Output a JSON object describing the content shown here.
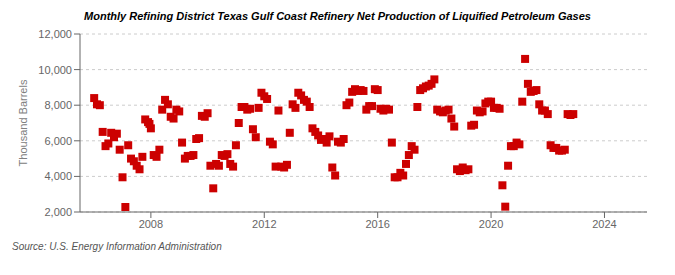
{
  "chart_data": {
    "type": "scatter",
    "title": "Monthly Refining District Texas Gulf Coast Refinery Net Production of Liquified Petroleum Gases",
    "ylabel": "Thousand Barrels",
    "annotation": "Source: U.S. Energy Information Administration",
    "color": "#cc0000",
    "marker": "square",
    "grid": true,
    "xlim": [
      2005.5,
      2025.5
    ],
    "xticks": [
      2008,
      2012,
      2016,
      2020,
      2024
    ],
    "ylim": [
      2000,
      12000
    ],
    "yticks": [
      {
        "value": 2000,
        "label": "2,000"
      },
      {
        "value": 4000,
        "label": "4,000"
      },
      {
        "value": 6000,
        "label": "6,000"
      },
      {
        "value": 8000,
        "label": "8,000"
      },
      {
        "value": 10000,
        "label": "10,000"
      },
      {
        "value": 12000,
        "label": "12,000"
      }
    ],
    "x": [
      2006.0,
      2006.1,
      2006.2,
      2006.3,
      2006.4,
      2006.5,
      2006.6,
      2006.7,
      2006.8,
      2006.9,
      2007.0,
      2007.1,
      2007.2,
      2007.3,
      2007.4,
      2007.5,
      2007.6,
      2007.7,
      2007.8,
      2007.9,
      2007.95,
      2008.0,
      2008.1,
      2008.2,
      2008.3,
      2008.4,
      2008.5,
      2008.6,
      2008.7,
      2008.8,
      2008.9,
      2009.0,
      2009.1,
      2009.2,
      2009.3,
      2009.4,
      2009.5,
      2009.6,
      2009.7,
      2009.8,
      2009.9,
      2010.0,
      2010.1,
      2010.2,
      2010.3,
      2010.4,
      2010.5,
      2010.6,
      2010.7,
      2010.8,
      2010.9,
      2011.0,
      2011.1,
      2011.2,
      2011.3,
      2011.4,
      2011.5,
      2011.6,
      2011.7,
      2011.8,
      2011.9,
      2012.0,
      2012.1,
      2012.2,
      2012.3,
      2012.4,
      2012.5,
      2012.6,
      2012.7,
      2012.8,
      2012.9,
      2013.0,
      2013.1,
      2013.2,
      2013.3,
      2013.4,
      2013.5,
      2013.6,
      2013.7,
      2013.8,
      2013.9,
      2014.0,
      2014.1,
      2014.2,
      2014.3,
      2014.4,
      2014.5,
      2014.6,
      2014.7,
      2014.8,
      2014.9,
      2015.0,
      2015.1,
      2015.2,
      2015.3,
      2015.4,
      2015.5,
      2015.6,
      2015.7,
      2015.8,
      2015.9,
      2016.0,
      2016.1,
      2016.2,
      2016.3,
      2016.4,
      2016.5,
      2016.6,
      2016.7,
      2016.8,
      2016.9,
      2017.0,
      2017.1,
      2017.2,
      2017.3,
      2017.4,
      2017.5,
      2017.6,
      2017.7,
      2017.8,
      2017.9,
      2018.0,
      2018.1,
      2018.2,
      2018.3,
      2018.4,
      2018.5,
      2018.6,
      2018.7,
      2018.8,
      2018.9,
      2019.0,
      2019.1,
      2019.2,
      2019.3,
      2019.4,
      2019.5,
      2019.6,
      2019.7,
      2019.8,
      2019.9,
      2020.0,
      2020.1,
      2020.2,
      2020.3,
      2020.4,
      2020.5,
      2020.6,
      2020.7,
      2020.8,
      2020.9,
      2021.0,
      2021.1,
      2021.2,
      2021.3,
      2021.4,
      2021.5,
      2021.6,
      2021.7,
      2021.8,
      2021.9,
      2022.0,
      2022.1,
      2022.2,
      2022.3,
      2022.4,
      2022.5,
      2022.6,
      2022.7,
      2022.8,
      2022.9
    ],
    "values": [
      8400,
      8050,
      8000,
      6500,
      5700,
      5850,
      6450,
      6200,
      6400,
      5500,
      3950,
      2280,
      5750,
      5000,
      4850,
      4600,
      4400,
      5100,
      7200,
      7050,
      6950,
      6700,
      5200,
      5100,
      5500,
      7750,
      8300,
      8050,
      7350,
      7250,
      7750,
      7650,
      5900,
      5000,
      5150,
      5150,
      5200,
      6100,
      6150,
      7400,
      7350,
      7550,
      4600,
      3330,
      4700,
      4600,
      5200,
      5150,
      5250,
      4700,
      4550,
      5750,
      7000,
      7900,
      7900,
      7750,
      7800,
      6650,
      6200,
      7850,
      8700,
      8500,
      8350,
      5950,
      5800,
      4550,
      7700,
      4550,
      4500,
      4650,
      6450,
      8050,
      7850,
      8700,
      8550,
      8300,
      8200,
      7900,
      6700,
      6500,
      6300,
      6050,
      6100,
      5900,
      6250,
      4500,
      4050,
      5950,
      5900,
      6100,
      8000,
      8150,
      8750,
      8900,
      8800,
      8850,
      8800,
      7750,
      7950,
      7950,
      8900,
      8850,
      7800,
      7700,
      7800,
      7750,
      5900,
      3950,
      3950,
      4200,
      4050,
      4700,
      5200,
      5700,
      5500,
      7900,
      8850,
      8950,
      9050,
      9100,
      9200,
      9450,
      7750,
      7650,
      7600,
      7700,
      7750,
      7250,
      6800,
      4400,
      4300,
      4500,
      4350,
      4400,
      6850,
      6900,
      7700,
      7600,
      7650,
      8100,
      8200,
      8200,
      7850,
      7850,
      7800,
      3500,
      2300,
      4600,
      5700,
      5700,
      5900,
      5800,
      8200,
      10600,
      9200,
      8750,
      8800,
      8850,
      8050,
      7700,
      7700,
      7500,
      5750,
      5600,
      5600,
      5450,
      5450,
      5500,
      7500,
      7450,
      7500
    ]
  }
}
